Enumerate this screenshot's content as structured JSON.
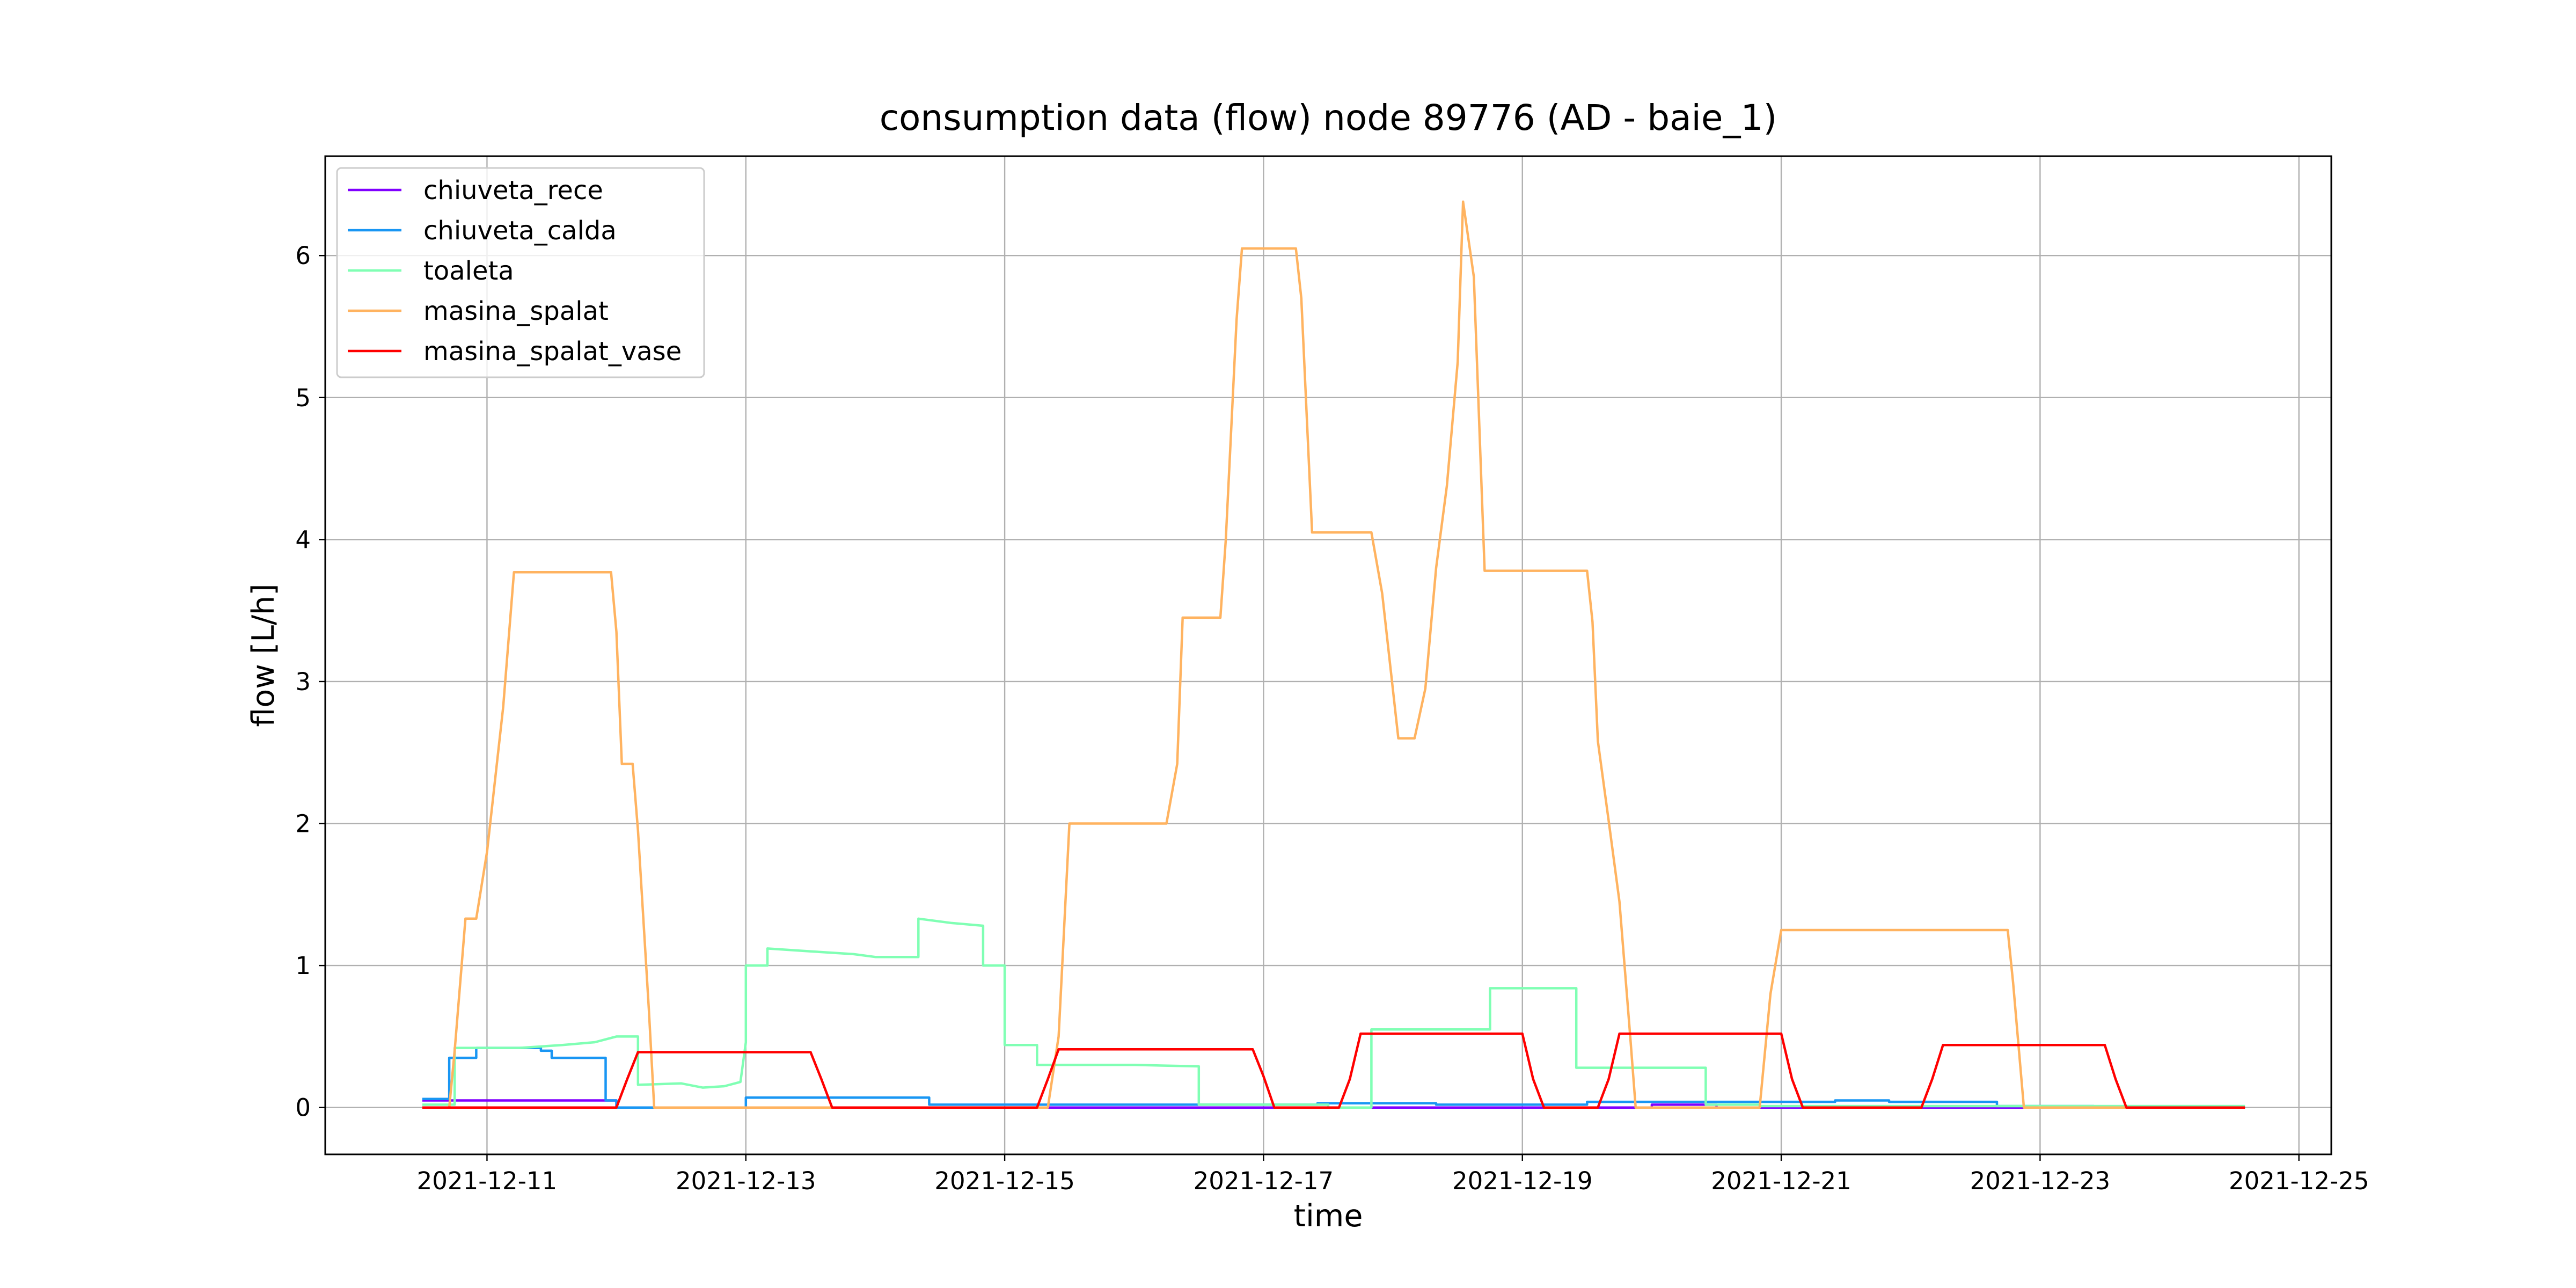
{
  "chart_data": {
    "type": "line",
    "title": "consumption data (flow) node 89776 (AD - baie_1)",
    "xlabel": "time",
    "ylabel": "flow [L/h]",
    "x_unit": "days",
    "xlim": [
      "2021-12-09T18:00",
      "2021-12-25T06:00"
    ],
    "ylim": [
      -0.33,
      6.7
    ],
    "xticks": [
      "2021-12-11",
      "2021-12-13",
      "2021-12-15",
      "2021-12-17",
      "2021-12-19",
      "2021-12-21",
      "2021-12-23",
      "2021-12-25"
    ],
    "yticks": [
      0,
      1,
      2,
      3,
      4,
      5,
      6
    ],
    "grid": true,
    "legend_position": "upper-left",
    "series": [
      {
        "name": "chiuveta_rece",
        "color": "#8000ff",
        "points": [
          [
            "2021-12-10T12:00",
            0.05
          ],
          [
            "2021-12-11T12:00",
            0.05
          ],
          [
            "2021-12-12T00:00",
            0.05
          ],
          [
            "2021-12-12T00:00",
            0
          ],
          [
            "2021-12-17T12:00",
            0
          ],
          [
            "2021-12-20T00:00",
            0
          ],
          [
            "2021-12-20T00:00",
            0.02
          ],
          [
            "2021-12-20T12:00",
            0.02
          ],
          [
            "2021-12-20T12:00",
            0
          ],
          [
            "2021-12-24T14:00",
            0
          ]
        ]
      },
      {
        "name": "chiuveta_calda",
        "color": "#1996f3",
        "points": [
          [
            "2021-12-10T12:00",
            0.06
          ],
          [
            "2021-12-10T17:00",
            0.06
          ],
          [
            "2021-12-10T17:00",
            0.35
          ],
          [
            "2021-12-10T22:00",
            0.35
          ],
          [
            "2021-12-10T22:00",
            0.42
          ],
          [
            "2021-12-11T10:00",
            0.42
          ],
          [
            "2021-12-11T10:00",
            0.4
          ],
          [
            "2021-12-11T12:00",
            0.4
          ],
          [
            "2021-12-11T12:00",
            0.35
          ],
          [
            "2021-12-11T22:00",
            0.35
          ],
          [
            "2021-12-11T22:00",
            0.05
          ],
          [
            "2021-12-12T00:00",
            0.05
          ],
          [
            "2021-12-12T00:00",
            0
          ],
          [
            "2021-12-13T00:00",
            0
          ],
          [
            "2021-12-13T00:00",
            0.07
          ],
          [
            "2021-12-14T10:00",
            0.07
          ],
          [
            "2021-12-14T10:00",
            0.02
          ],
          [
            "2021-12-17T10:00",
            0.02
          ],
          [
            "2021-12-17T10:00",
            0.03
          ],
          [
            "2021-12-18T08:00",
            0.03
          ],
          [
            "2021-12-18T08:00",
            0.02
          ],
          [
            "2021-12-19T12:00",
            0.02
          ],
          [
            "2021-12-19T12:00",
            0.04
          ],
          [
            "2021-12-21T10:00",
            0.04
          ],
          [
            "2021-12-21T10:00",
            0.05
          ],
          [
            "2021-12-21T20:00",
            0.05
          ],
          [
            "2021-12-21T20:00",
            0.04
          ],
          [
            "2021-12-22T16:00",
            0.04
          ],
          [
            "2021-12-22T16:00",
            0.01
          ],
          [
            "2021-12-23T10:00",
            0.01
          ]
        ]
      },
      {
        "name": "toaleta",
        "color": "#80ffb4",
        "points": [
          [
            "2021-12-10T12:00",
            0.02
          ],
          [
            "2021-12-10T18:00",
            0.02
          ],
          [
            "2021-12-10T18:00",
            0.42
          ],
          [
            "2021-12-11T06:00",
            0.42
          ],
          [
            "2021-12-11T14:00",
            0.44
          ],
          [
            "2021-12-11T20:00",
            0.46
          ],
          [
            "2021-12-12T00:00",
            0.5
          ],
          [
            "2021-12-12T04:00",
            0.5
          ],
          [
            "2021-12-12T04:00",
            0.16
          ],
          [
            "2021-12-12T12:00",
            0.17
          ],
          [
            "2021-12-12T16:00",
            0.14
          ],
          [
            "2021-12-12T20:00",
            0.15
          ],
          [
            "2021-12-12T23:00",
            0.18
          ],
          [
            "2021-12-13T00:00",
            0.46
          ],
          [
            "2021-12-13T00:00",
            1.0
          ],
          [
            "2021-12-13T04:00",
            1.0
          ],
          [
            "2021-12-13T04:00",
            1.12
          ],
          [
            "2021-12-13T12:00",
            1.1
          ],
          [
            "2021-12-13T20:00",
            1.08
          ],
          [
            "2021-12-14T00:00",
            1.06
          ],
          [
            "2021-12-14T08:00",
            1.06
          ],
          [
            "2021-12-14T08:00",
            1.33
          ],
          [
            "2021-12-14T14:00",
            1.3
          ],
          [
            "2021-12-14T20:00",
            1.28
          ],
          [
            "2021-12-14T20:00",
            1.0
          ],
          [
            "2021-12-15T00:00",
            1.0
          ],
          [
            "2021-12-15T00:00",
            0.44
          ],
          [
            "2021-12-15T06:00",
            0.44
          ],
          [
            "2021-12-15T06:00",
            0.3
          ],
          [
            "2021-12-16T00:00",
            0.3
          ],
          [
            "2021-12-16T12:00",
            0.29
          ],
          [
            "2021-12-16T12:00",
            0.02
          ],
          [
            "2021-12-17T12:00",
            0.02
          ],
          [
            "2021-12-17T12:00",
            0
          ],
          [
            "2021-12-17T20:00",
            0
          ],
          [
            "2021-12-17T20:00",
            0.55
          ],
          [
            "2021-12-18T18:00",
            0.55
          ],
          [
            "2021-12-18T18:00",
            0.84
          ],
          [
            "2021-12-19T10:00",
            0.84
          ],
          [
            "2021-12-19T10:00",
            0.28
          ],
          [
            "2021-12-20T10:00",
            0.28
          ],
          [
            "2021-12-20T10:00",
            0.02
          ],
          [
            "2021-12-20T20:00",
            0.02
          ],
          [
            "2021-12-20T20:00",
            0.01
          ],
          [
            "2021-12-24T14:00",
            0.01
          ]
        ]
      },
      {
        "name": "masina_spalat",
        "color": "#ffb360",
        "points": [
          [
            "2021-12-10T12:00",
            0
          ],
          [
            "2021-12-10T17:00",
            0
          ],
          [
            "2021-12-10T18:00",
            0.4
          ],
          [
            "2021-12-10T20:00",
            1.33
          ],
          [
            "2021-12-10T22:00",
            1.33
          ],
          [
            "2021-12-11T00:00",
            1.8
          ],
          [
            "2021-12-11T03:00",
            2.82
          ],
          [
            "2021-12-11T05:00",
            3.77
          ],
          [
            "2021-12-11T16:00",
            3.77
          ],
          [
            "2021-12-11T23:00",
            3.77
          ],
          [
            "2021-12-12T00:00",
            3.35
          ],
          [
            "2021-12-12T01:00",
            2.42
          ],
          [
            "2021-12-12T03:00",
            2.42
          ],
          [
            "2021-12-12T04:00",
            1.95
          ],
          [
            "2021-12-12T06:00",
            0.7
          ],
          [
            "2021-12-12T07:00",
            0
          ],
          [
            "2021-12-15T08:00",
            0
          ],
          [
            "2021-12-15T10:00",
            0.5
          ],
          [
            "2021-12-15T12:00",
            2.0
          ],
          [
            "2021-12-16T06:00",
            2.0
          ],
          [
            "2021-12-16T08:00",
            2.42
          ],
          [
            "2021-12-16T09:00",
            3.45
          ],
          [
            "2021-12-16T16:00",
            3.45
          ],
          [
            "2021-12-16T17:00",
            4.0
          ],
          [
            "2021-12-16T19:00",
            5.55
          ],
          [
            "2021-12-16T20:00",
            6.05
          ],
          [
            "2021-12-17T06:00",
            6.05
          ],
          [
            "2021-12-17T07:00",
            5.7
          ],
          [
            "2021-12-17T09:00",
            4.05
          ],
          [
            "2021-12-17T20:00",
            4.05
          ],
          [
            "2021-12-17T22:00",
            3.62
          ],
          [
            "2021-12-18T01:00",
            2.6
          ],
          [
            "2021-12-18T04:00",
            2.6
          ],
          [
            "2021-12-18T06:00",
            2.95
          ],
          [
            "2021-12-18T08:00",
            3.8
          ],
          [
            "2021-12-18T10:00",
            4.38
          ],
          [
            "2021-12-18T12:00",
            5.25
          ],
          [
            "2021-12-18T13:00",
            6.38
          ],
          [
            "2021-12-18T15:00",
            5.85
          ],
          [
            "2021-12-18T17:00",
            3.78
          ],
          [
            "2021-12-19T12:00",
            3.78
          ],
          [
            "2021-12-19T13:00",
            3.42
          ],
          [
            "2021-12-19T14:00",
            2.58
          ],
          [
            "2021-12-19T16:00",
            2.02
          ],
          [
            "2021-12-19T18:00",
            1.45
          ],
          [
            "2021-12-19T20:00",
            0.5
          ],
          [
            "2021-12-19T21:00",
            0
          ],
          [
            "2021-12-20T20:00",
            0
          ],
          [
            "2021-12-20T22:00",
            0.8
          ],
          [
            "2021-12-21T00:00",
            1.25
          ],
          [
            "2021-12-22T18:00",
            1.25
          ],
          [
            "2021-12-22T19:00",
            0.88
          ],
          [
            "2021-12-22T21:00",
            0
          ],
          [
            "2021-12-24T14:00",
            0
          ]
        ]
      },
      {
        "name": "masina_spalat_vase",
        "color": "#ff0000",
        "points": [
          [
            "2021-12-10T12:00",
            0
          ],
          [
            "2021-12-12T00:00",
            0
          ],
          [
            "2021-12-12T02:00",
            0.2
          ],
          [
            "2021-12-12T04:00",
            0.39
          ],
          [
            "2021-12-13T12:00",
            0.39
          ],
          [
            "2021-12-13T14:00",
            0.2
          ],
          [
            "2021-12-13T16:00",
            0
          ],
          [
            "2021-12-15T06:00",
            0
          ],
          [
            "2021-12-15T08:00",
            0.2
          ],
          [
            "2021-12-15T10:00",
            0.41
          ],
          [
            "2021-12-16T22:00",
            0.41
          ],
          [
            "2021-12-17T00:00",
            0.22
          ],
          [
            "2021-12-17T02:00",
            0
          ],
          [
            "2021-12-17T14:00",
            0
          ],
          [
            "2021-12-17T16:00",
            0.2
          ],
          [
            "2021-12-17T18:00",
            0.52
          ],
          [
            "2021-12-19T00:00",
            0.52
          ],
          [
            "2021-12-19T02:00",
            0.2
          ],
          [
            "2021-12-19T04:00",
            0
          ],
          [
            "2021-12-19T14:00",
            0
          ],
          [
            "2021-12-19T16:00",
            0.2
          ],
          [
            "2021-12-19T18:00",
            0.52
          ],
          [
            "2021-12-21T00:00",
            0.52
          ],
          [
            "2021-12-21T02:00",
            0.2
          ],
          [
            "2021-12-21T04:00",
            0
          ],
          [
            "2021-12-22T02:00",
            0
          ],
          [
            "2021-12-22T04:00",
            0.2
          ],
          [
            "2021-12-22T06:00",
            0.44
          ],
          [
            "2021-12-23T12:00",
            0.44
          ],
          [
            "2021-12-23T14:00",
            0.2
          ],
          [
            "2021-12-23T16:00",
            0
          ],
          [
            "2021-12-24T14:00",
            0
          ]
        ]
      }
    ]
  }
}
